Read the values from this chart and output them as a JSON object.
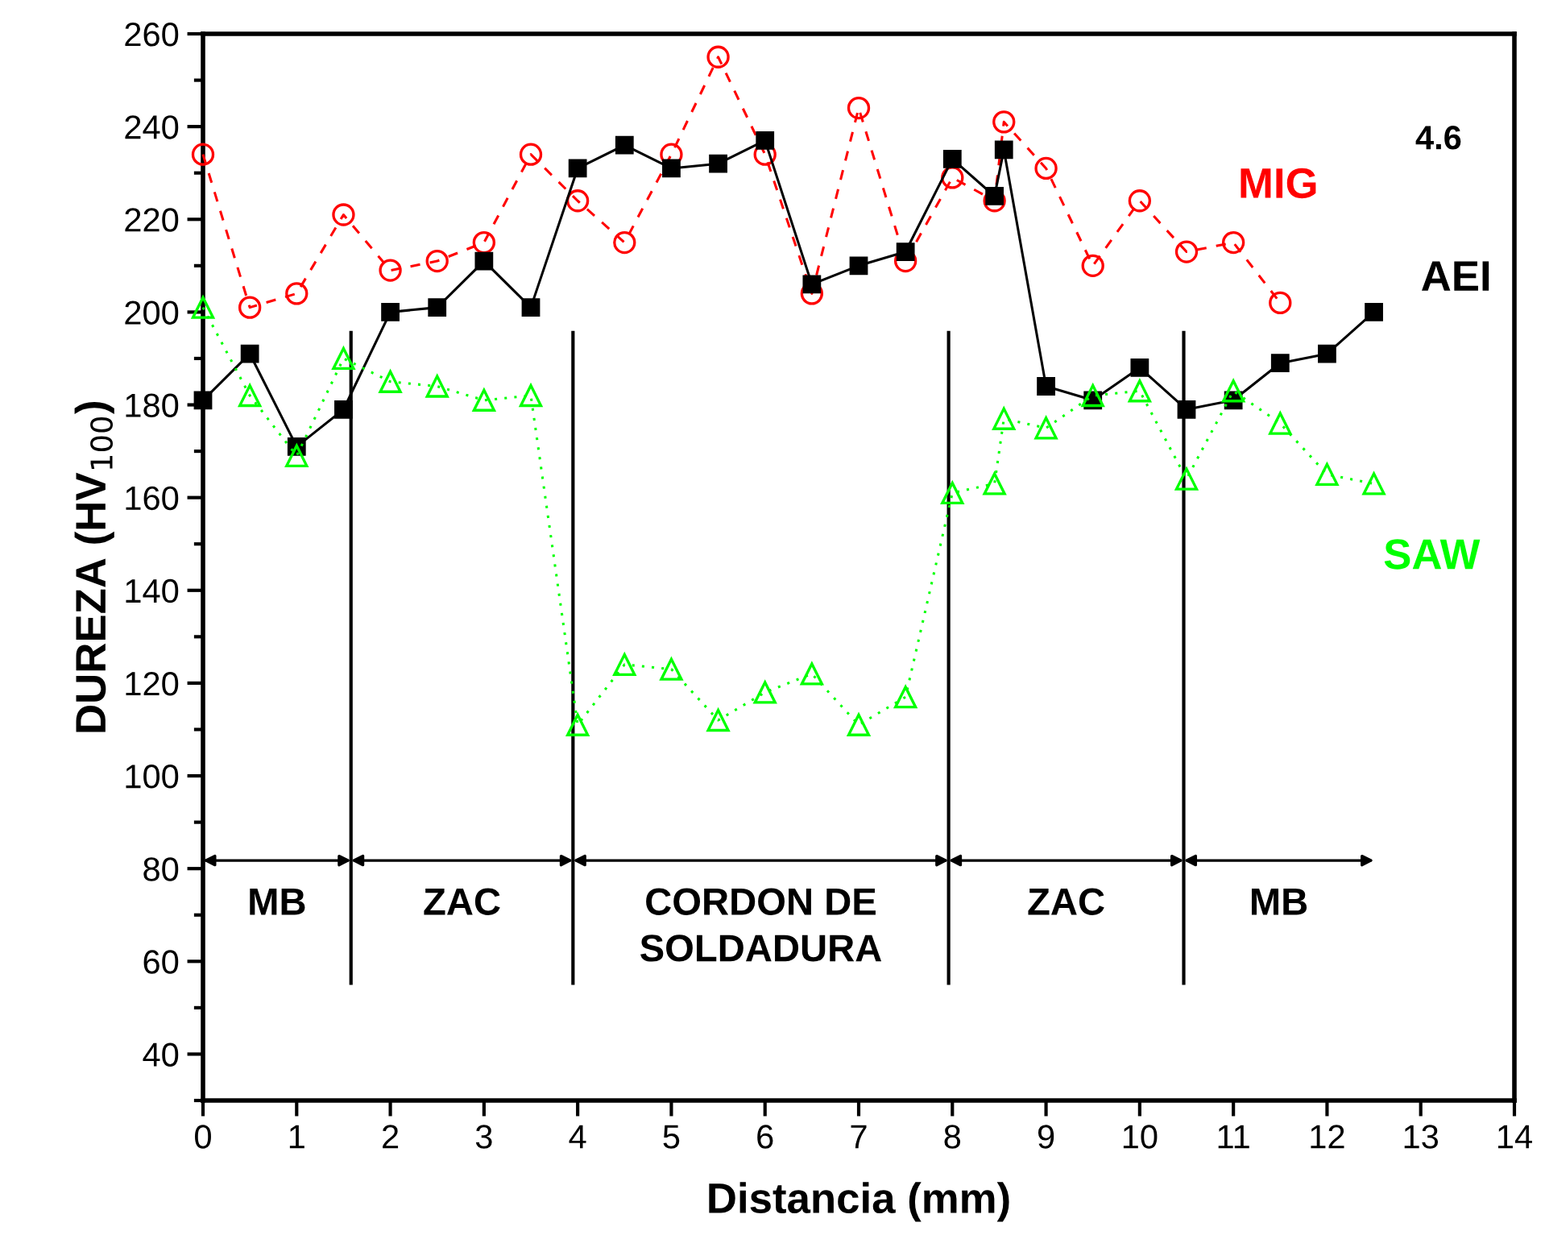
{
  "chart_data": {
    "type": "line",
    "xlabel": "Distancia (mm)",
    "ylabel": "DUREZA (HV$_{100}$)",
    "xlim": [
      0,
      14
    ],
    "ylim": [
      30,
      260
    ],
    "xticks": [
      0,
      1,
      2,
      3,
      4,
      5,
      6,
      7,
      8,
      9,
      10,
      11,
      12,
      13,
      14
    ],
    "yticks": [
      40,
      60,
      80,
      100,
      120,
      140,
      160,
      180,
      200,
      220,
      240,
      260
    ],
    "grid": false,
    "legend": false,
    "series": [
      {
        "name": "MIG",
        "color": "#ff0000",
        "marker": "circle",
        "line_style": "dashed",
        "x": [
          0,
          0.5,
          1,
          1.5,
          2,
          2.5,
          3,
          3.5,
          4,
          4.5,
          5,
          5.5,
          6,
          6.5,
          7,
          7.5,
          8,
          8.45,
          8.55,
          9,
          9.5,
          10,
          10.5,
          11,
          11.5
        ],
        "values": [
          234,
          201,
          204,
          221,
          209,
          211,
          215,
          234,
          224,
          215,
          234,
          255,
          234,
          204,
          244,
          211,
          229,
          224,
          241,
          231,
          210,
          224,
          213,
          215,
          202
        ]
      },
      {
        "name": "AEI",
        "color": "#000000",
        "marker": "square",
        "line_style": "solid",
        "x": [
          0,
          0.5,
          1,
          1.5,
          2,
          2.5,
          3,
          3.5,
          4,
          4.5,
          5,
          5.5,
          6,
          6.5,
          7,
          7.5,
          8,
          8.45,
          8.55,
          9,
          9.5,
          10,
          10.5,
          11,
          11.5,
          12,
          12.5
        ],
        "values": [
          181,
          191,
          171,
          179,
          200,
          201,
          211,
          201,
          231,
          236,
          231,
          232,
          237,
          206,
          210,
          213,
          233,
          225,
          235,
          184,
          181,
          188,
          179,
          181,
          189,
          191,
          200
        ]
      },
      {
        "name": "SAW",
        "color": "#00ff00",
        "marker": "triangle",
        "line_style": "dotted",
        "x": [
          0,
          0.5,
          1,
          1.5,
          2,
          2.5,
          3,
          3.5,
          4,
          4.5,
          5,
          5.5,
          6,
          6.5,
          7,
          7.5,
          8,
          8.45,
          8.55,
          9,
          9.5,
          10,
          10.5,
          11,
          11.5,
          12,
          12.5
        ],
        "values": [
          201,
          182,
          169,
          190,
          185,
          184,
          181,
          182,
          111,
          124,
          123,
          112,
          118,
          122,
          111,
          117,
          161,
          163,
          177,
          175,
          182,
          183,
          164,
          183,
          176,
          165,
          163
        ]
      }
    ],
    "ref_lines": [
      {
        "axis": "x",
        "value": 1.58,
        "color": "#000000"
      },
      {
        "axis": "x",
        "value": 3.95,
        "color": "#000000"
      },
      {
        "axis": "x",
        "value": 7.96,
        "color": "#000000"
      },
      {
        "axis": "x",
        "value": 10.47,
        "color": "#000000"
      }
    ],
    "annotations": [
      "MB",
      "ZAC",
      "CORDON DE\nSOLDADURA",
      "ZAC",
      "MB",
      "4.6"
    ]
  }
}
